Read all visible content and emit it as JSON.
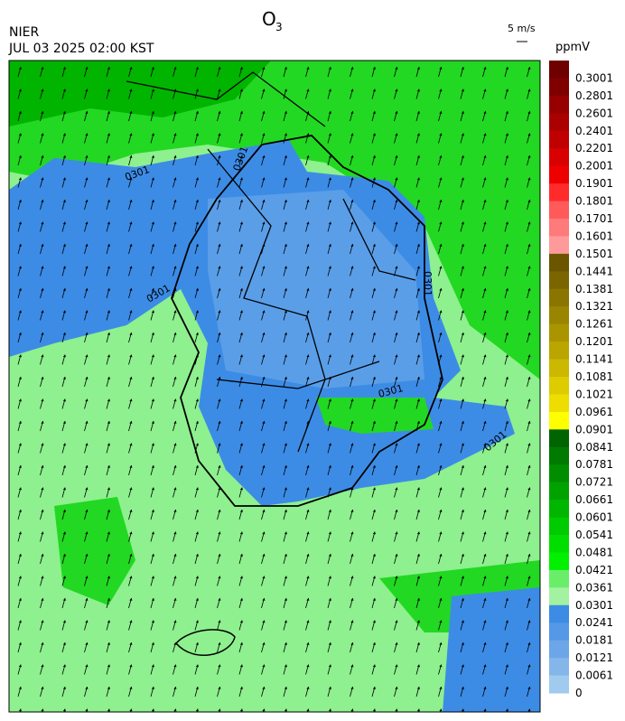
{
  "header": {
    "title": "O",
    "title_subscript": "3",
    "agency": "NIER",
    "datetime": "JUL 03 2025 02:00 KST",
    "wind_scale": "5 m/s",
    "unit": "ppmV"
  },
  "map": {
    "contour_labels": [
      "0301",
      "0301",
      "0301",
      "0301",
      "0301",
      "0301"
    ]
  },
  "colorbar": {
    "labels": [
      "0.3001",
      "0.2801",
      "0.2601",
      "0.2401",
      "0.2201",
      "0.2001",
      "0.1901",
      "0.1801",
      "0.1701",
      "0.1601",
      "0.1501",
      "0.1441",
      "0.1381",
      "0.1321",
      "0.1261",
      "0.1201",
      "0.1141",
      "0.1081",
      "0.1021",
      "0.0961",
      "0.0901",
      "0.0841",
      "0.0781",
      "0.0721",
      "0.0661",
      "0.0601",
      "0.0541",
      "0.0481",
      "0.0421",
      "0.0361",
      "0.0301",
      "0.0241",
      "0.0181",
      "0.0121",
      "0.0061",
      "0"
    ],
    "colors": [
      "#6e0000",
      "#800000",
      "#960000",
      "#aa0000",
      "#c00000",
      "#d80000",
      "#ee0000",
      "#ff2a2a",
      "#ff5a5a",
      "#ff7a7a",
      "#ff9a9a",
      "#6a5500",
      "#7a6500",
      "#8a7500",
      "#9a8500",
      "#aa9500",
      "#bba500",
      "#ccb800",
      "#ddcc00",
      "#eedd00",
      "#ffff00",
      "#006400",
      "#007a00",
      "#008e00",
      "#00a200",
      "#00b600",
      "#00ca00",
      "#00de00",
      "#00f000",
      "#6aee6a",
      "#a2f2a2",
      "#3c8ce6",
      "#5498e6",
      "#6ca6e8",
      "#84b6ea",
      "#a0cbee"
    ]
  }
}
